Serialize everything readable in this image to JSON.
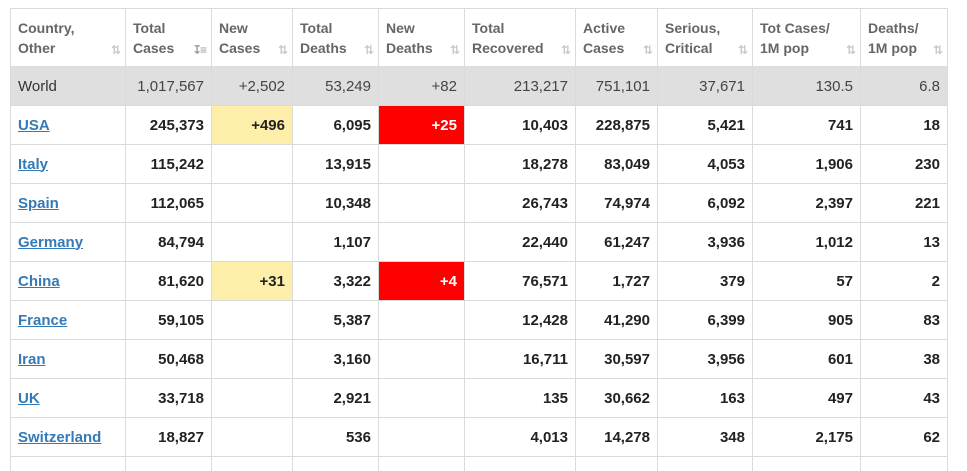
{
  "columns": [
    {
      "line1": "Country,",
      "line2": "Other",
      "sort_active": false
    },
    {
      "line1": "Total",
      "line2": "Cases",
      "sort_active": true
    },
    {
      "line1": "New",
      "line2": "Cases",
      "sort_active": false
    },
    {
      "line1": "Total",
      "line2": "Deaths",
      "sort_active": false
    },
    {
      "line1": "New",
      "line2": "Deaths",
      "sort_active": false
    },
    {
      "line1": "Total",
      "line2": "Recovered",
      "sort_active": false
    },
    {
      "line1": "Active",
      "line2": "Cases",
      "sort_active": false
    },
    {
      "line1": "Serious,",
      "line2": "Critical",
      "sort_active": false
    },
    {
      "line1": "Tot Cases/",
      "line2": "1M pop",
      "sort_active": false
    },
    {
      "line1": "Deaths/",
      "line2": "1M pop",
      "sort_active": false
    }
  ],
  "icons": {
    "sort": "sort-arrows-icon",
    "sort_glyph": "⇅",
    "sort_active_glyph": "↧≡"
  },
  "colors": {
    "new_cases_highlight": "#fdeea9",
    "new_deaths_highlight": "#ff0000",
    "link": "#337ab7",
    "world_row": "#dfdfdf"
  },
  "world": {
    "country": "World",
    "total_cases": "1,017,567",
    "new_cases": "+2,502",
    "total_deaths": "53,249",
    "new_deaths": "+82",
    "total_recovered": "213,217",
    "active_cases": "751,101",
    "serious_critical": "37,671",
    "cases_per_1m": "130.5",
    "deaths_per_1m": "6.8"
  },
  "rows": [
    {
      "country": "USA",
      "total_cases": "245,373",
      "new_cases": "+496",
      "total_deaths": "6,095",
      "new_deaths": "+25",
      "total_recovered": "10,403",
      "active_cases": "228,875",
      "serious_critical": "5,421",
      "cases_per_1m": "741",
      "deaths_per_1m": "18"
    },
    {
      "country": "Italy",
      "total_cases": "115,242",
      "new_cases": "",
      "total_deaths": "13,915",
      "new_deaths": "",
      "total_recovered": "18,278",
      "active_cases": "83,049",
      "serious_critical": "4,053",
      "cases_per_1m": "1,906",
      "deaths_per_1m": "230"
    },
    {
      "country": "Spain",
      "total_cases": "112,065",
      "new_cases": "",
      "total_deaths": "10,348",
      "new_deaths": "",
      "total_recovered": "26,743",
      "active_cases": "74,974",
      "serious_critical": "6,092",
      "cases_per_1m": "2,397",
      "deaths_per_1m": "221"
    },
    {
      "country": "Germany",
      "total_cases": "84,794",
      "new_cases": "",
      "total_deaths": "1,107",
      "new_deaths": "",
      "total_recovered": "22,440",
      "active_cases": "61,247",
      "serious_critical": "3,936",
      "cases_per_1m": "1,012",
      "deaths_per_1m": "13"
    },
    {
      "country": "China",
      "total_cases": "81,620",
      "new_cases": "+31",
      "total_deaths": "3,322",
      "new_deaths": "+4",
      "total_recovered": "76,571",
      "active_cases": "1,727",
      "serious_critical": "379",
      "cases_per_1m": "57",
      "deaths_per_1m": "2"
    },
    {
      "country": "France",
      "total_cases": "59,105",
      "new_cases": "",
      "total_deaths": "5,387",
      "new_deaths": "",
      "total_recovered": "12,428",
      "active_cases": "41,290",
      "serious_critical": "6,399",
      "cases_per_1m": "905",
      "deaths_per_1m": "83"
    },
    {
      "country": "Iran",
      "total_cases": "50,468",
      "new_cases": "",
      "total_deaths": "3,160",
      "new_deaths": "",
      "total_recovered": "16,711",
      "active_cases": "30,597",
      "serious_critical": "3,956",
      "cases_per_1m": "601",
      "deaths_per_1m": "38"
    },
    {
      "country": "UK",
      "total_cases": "33,718",
      "new_cases": "",
      "total_deaths": "2,921",
      "new_deaths": "",
      "total_recovered": "135",
      "active_cases": "30,662",
      "serious_critical": "163",
      "cases_per_1m": "497",
      "deaths_per_1m": "43"
    },
    {
      "country": "Switzerland",
      "total_cases": "18,827",
      "new_cases": "",
      "total_deaths": "536",
      "new_deaths": "",
      "total_recovered": "4,013",
      "active_cases": "14,278",
      "serious_critical": "348",
      "cases_per_1m": "2,175",
      "deaths_per_1m": "62"
    }
  ]
}
